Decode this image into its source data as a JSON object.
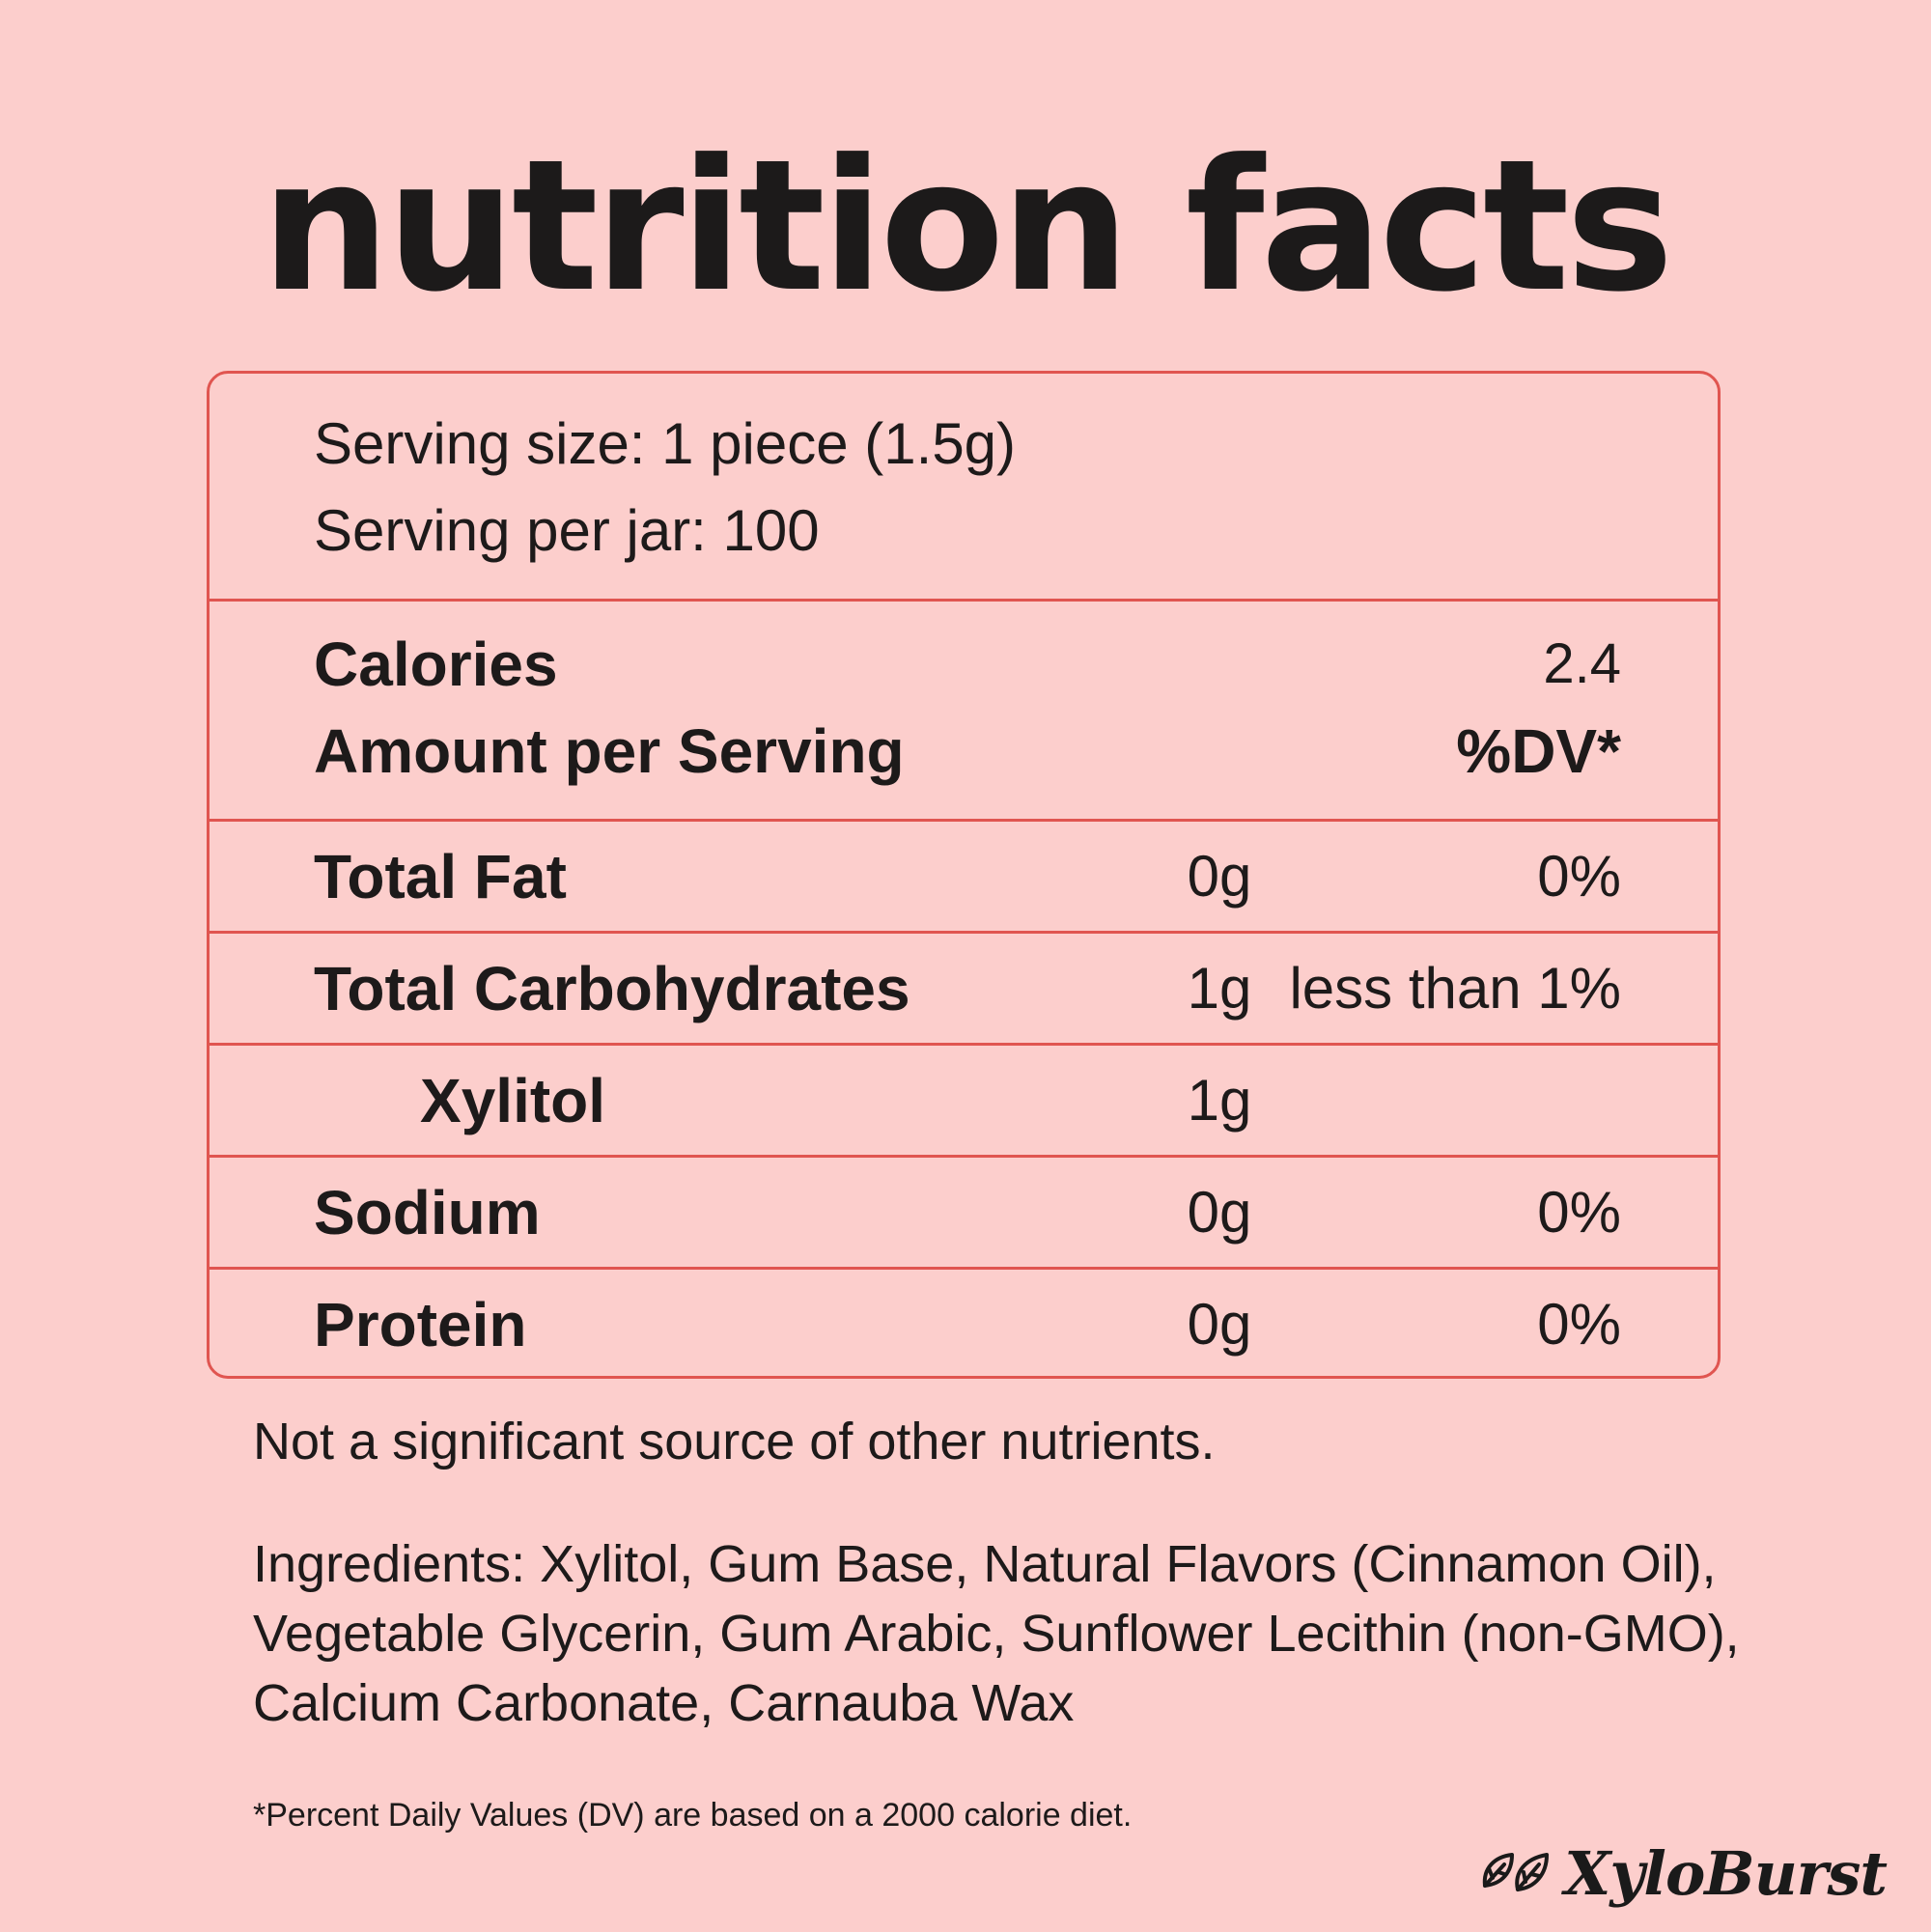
{
  "title": "nutrition facts",
  "serving": {
    "size": "Serving size: 1 piece (1.5g)",
    "per_jar": "Serving per jar: 100"
  },
  "calories": {
    "label": "Calories",
    "value": "2.4",
    "amount_label": "Amount per Serving",
    "dv_header": "%DV*"
  },
  "rows": [
    {
      "label": "Total Fat",
      "amount": "0g",
      "dv": "0%"
    },
    {
      "label": "Total Carbohydrates",
      "amount": "1g",
      "dv": "less than 1%"
    },
    {
      "label": "Xylitol",
      "amount": "1g",
      "dv": ""
    },
    {
      "label": "Sodium",
      "amount": "0g",
      "dv": "0%"
    },
    {
      "label": "Protein",
      "amount": "0g",
      "dv": "0%"
    }
  ],
  "note": "Not a significant source of other nutrients.",
  "ingredients": [
    "Ingredients: Xylitol, Gum Base, Natural Flavors (Cinnamon Oil),",
    "Vegetable Glycerin, Gum Arabic, Sunflower Lecithin (non-GMO),",
    "Calcium Carbonate, Carnauba Wax"
  ],
  "footnote": "*Percent Daily Values (DV) are based on a 2000 calorie diet.",
  "brand": {
    "name": "XyloBurst",
    "icon": "leaf-icon"
  },
  "colors": {
    "background": "#fccecc",
    "border": "#e05550",
    "text": "#1d1a1a"
  }
}
